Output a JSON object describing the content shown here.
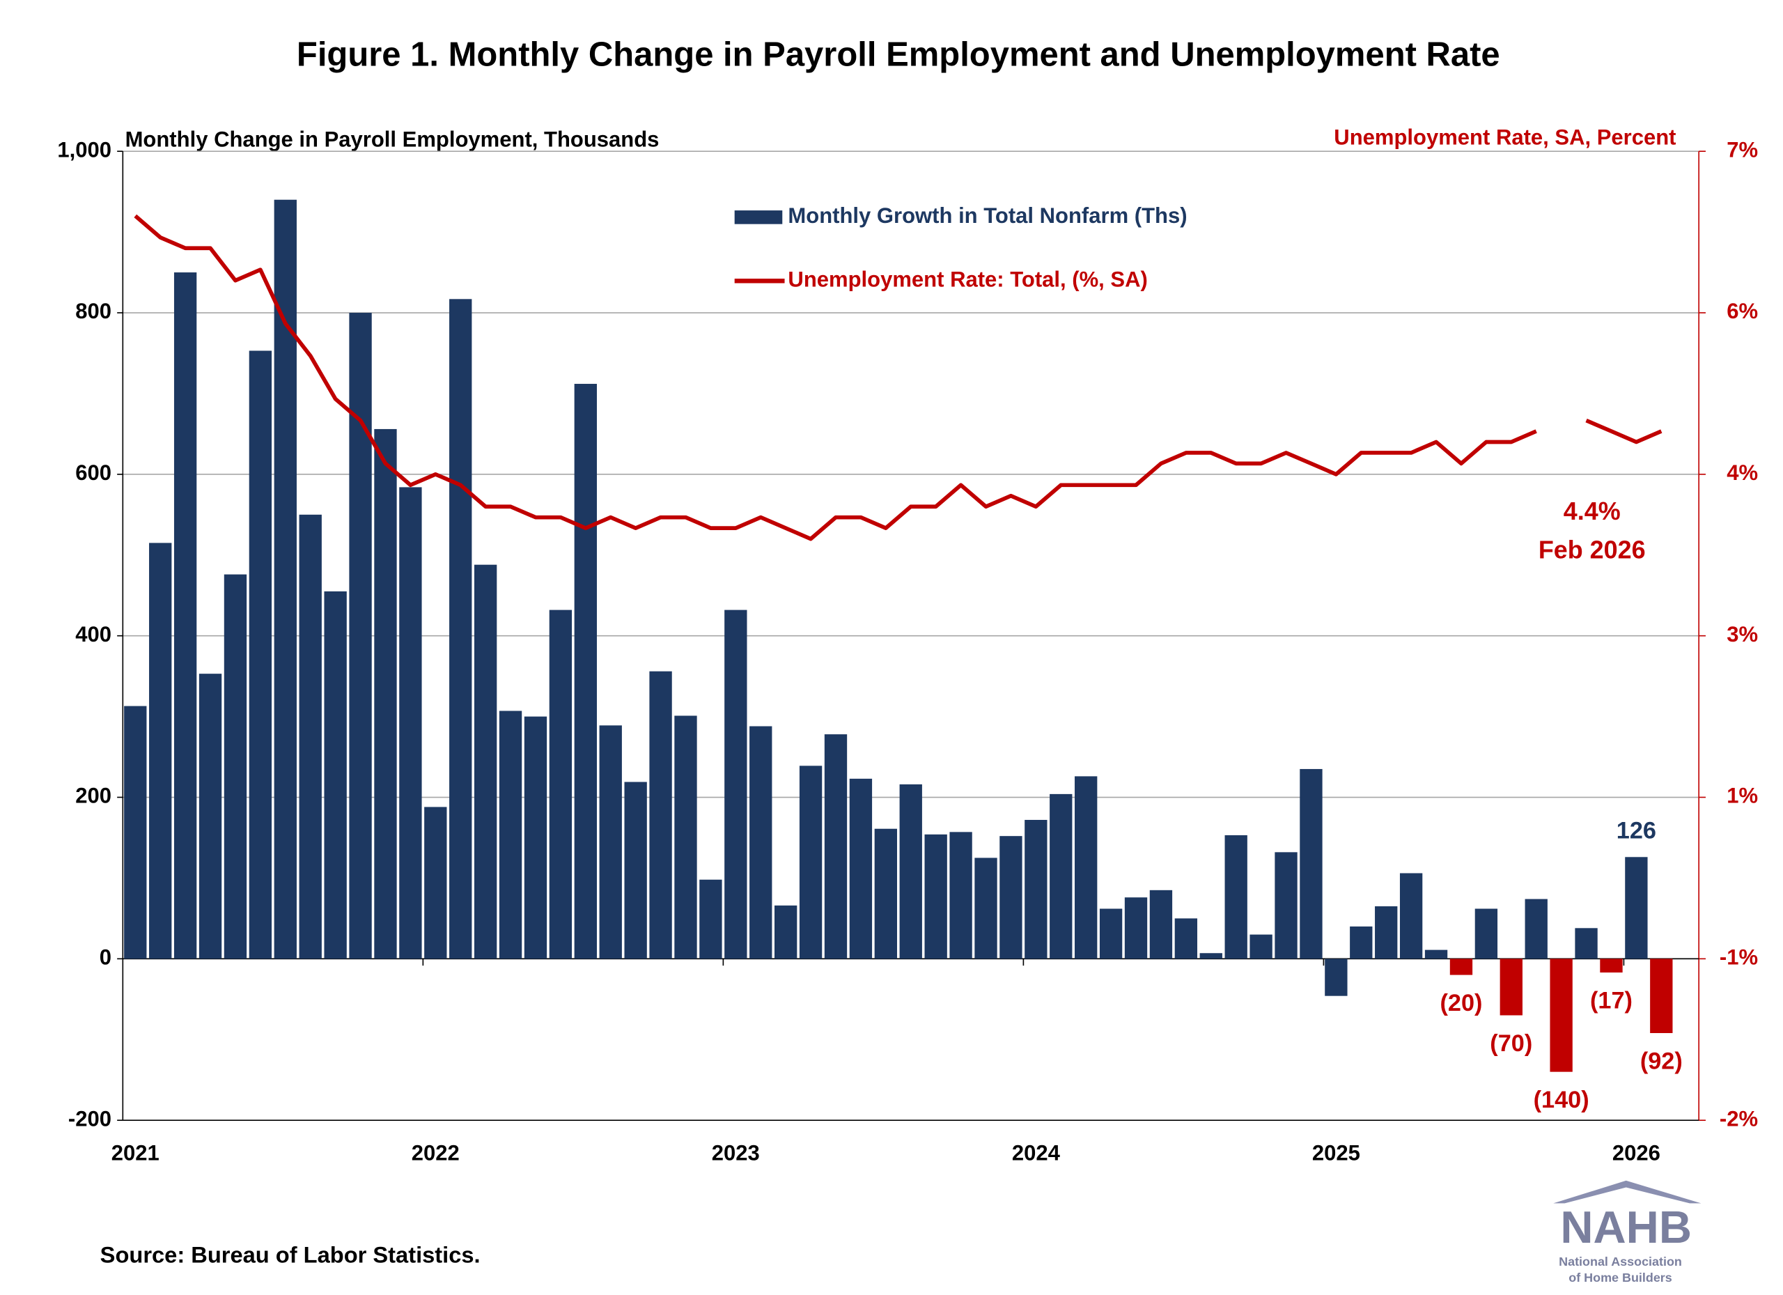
{
  "chart_data": {
    "type": "bar-line",
    "title": "Figure 1. Monthly Change in Payroll Employment and Unemployment Rate",
    "y_axis_title": "Monthly Change in Payroll Employment, Thousands",
    "y2_axis_title": "Unemployment Rate, SA, Percent",
    "categories": [
      "2021",
      null,
      null,
      null,
      null,
      null,
      null,
      null,
      null,
      null,
      null,
      null,
      "2022",
      null,
      null,
      null,
      null,
      null,
      null,
      null,
      null,
      null,
      null,
      null,
      "2023",
      null,
      null,
      null,
      null,
      null,
      null,
      null,
      null,
      null,
      null,
      null,
      "2024",
      null,
      null,
      null,
      null,
      null,
      null,
      null,
      null,
      null,
      null,
      null,
      "2025",
      null,
      null,
      null,
      null,
      null,
      null,
      null,
      null,
      null,
      null,
      null,
      "2026",
      null
    ],
    "series": [
      {
        "name": "Monthly Growth in Total Nonfarm (Ths)",
        "type": "bar",
        "color": "#1d3861",
        "values": [
          313,
          515,
          850,
          353,
          476,
          753,
          940,
          550,
          455,
          800,
          656,
          584,
          188,
          817,
          488,
          307,
          300,
          432,
          712,
          289,
          219,
          356,
          301,
          98,
          432,
          288,
          66,
          239,
          278,
          223,
          161,
          216,
          154,
          157,
          125,
          152,
          172,
          204,
          226,
          62,
          76,
          85,
          50,
          7,
          153,
          30,
          132,
          235,
          -46,
          40,
          65,
          106,
          11,
          -20,
          62,
          -70,
          74,
          -140,
          38,
          -17,
          126,
          -92
        ],
        "colors": [
          "#1d3861",
          "#1d3861",
          "#1d3861",
          "#1d3861",
          "#1d3861",
          "#1d3861",
          "#1d3861",
          "#1d3861",
          "#1d3861",
          "#1d3861",
          "#1d3861",
          "#1d3861",
          "#1d3861",
          "#1d3861",
          "#1d3861",
          "#1d3861",
          "#1d3861",
          "#1d3861",
          "#1d3861",
          "#1d3861",
          "#1d3861",
          "#1d3861",
          "#1d3861",
          "#1d3861",
          "#1d3861",
          "#1d3861",
          "#1d3861",
          "#1d3861",
          "#1d3861",
          "#1d3861",
          "#1d3861",
          "#1d3861",
          "#1d3861",
          "#1d3861",
          "#1d3861",
          "#1d3861",
          "#1d3861",
          "#1d3861",
          "#1d3861",
          "#1d3861",
          "#1d3861",
          "#1d3861",
          "#1d3861",
          "#1d3861",
          "#1d3861",
          "#1d3861",
          "#1d3861",
          "#1d3861",
          "#1d3861",
          "#1d3861",
          "#1d3861",
          "#1d3861",
          "#1d3861",
          "#c00000",
          "#1d3861",
          "#c00000",
          "#1d3861",
          "#c00000",
          "#1d3861",
          "#c00000",
          "#1d3861",
          "#c00000"
        ],
        "value_labels": [
          null,
          null,
          null,
          null,
          null,
          null,
          null,
          null,
          null,
          null,
          null,
          null,
          null,
          null,
          null,
          null,
          null,
          null,
          null,
          null,
          null,
          null,
          null,
          null,
          null,
          null,
          null,
          null,
          null,
          null,
          null,
          null,
          null,
          null,
          null,
          null,
          null,
          null,
          null,
          null,
          null,
          null,
          null,
          null,
          null,
          null,
          null,
          null,
          null,
          null,
          null,
          null,
          null,
          "(20)",
          null,
          "(70)",
          null,
          "(140)",
          null,
          "(17)",
          "126",
          "(92)"
        ]
      },
      {
        "name": "Unemployment Rate: Total, (%, SA)",
        "type": "line",
        "color": "#c00000",
        "axis": "y2",
        "values": [
          6.4,
          6.2,
          6.1,
          6.1,
          5.8,
          5.9,
          5.4,
          5.1,
          4.7,
          4.5,
          4.1,
          3.9,
          4.0,
          3.9,
          3.7,
          3.7,
          3.6,
          3.6,
          3.5,
          3.6,
          3.5,
          3.6,
          3.6,
          3.5,
          3.5,
          3.6,
          3.5,
          3.4,
          3.6,
          3.6,
          3.5,
          3.7,
          3.7,
          3.9,
          3.7,
          3.8,
          3.7,
          3.9,
          3.9,
          3.9,
          3.9,
          4.1,
          4.2,
          4.2,
          4.1,
          4.1,
          4.2,
          4.1,
          4.0,
          4.2,
          4.2,
          4.2,
          4.3,
          4.1,
          4.3,
          4.3,
          4.4,
          null,
          4.5,
          4.4,
          4.3,
          4.4
        ]
      }
    ],
    "ylim": [
      -200,
      1000
    ],
    "yticks": [
      -200,
      0,
      200,
      400,
      600,
      800,
      {
        "value": 1000,
        "label": "1,000"
      }
    ],
    "y2lim": [
      -2,
      7
    ],
    "y2ticks": [
      {
        "value": -2,
        "label": "-2%"
      },
      {
        "value": -0.5,
        "label": "-1%"
      },
      {
        "value": 1,
        "label": "1%"
      },
      {
        "value": 2.5,
        "label": "3%"
      },
      {
        "value": 4,
        "label": "4%"
      },
      {
        "value": 5.5,
        "label": "6%"
      },
      {
        "value": 7,
        "label": "7%"
      }
    ],
    "grid": true,
    "legend": "top",
    "annotation": [
      "4.4%",
      "Feb 2026"
    ],
    "source": "Source: Bureau of Labor Statistics.",
    "logo": {
      "name": "NAHB",
      "lines": [
        "National Association",
        "of Home Builders"
      ]
    }
  }
}
